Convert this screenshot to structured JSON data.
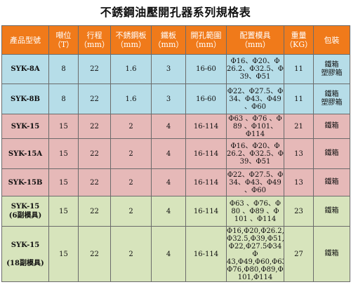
{
  "title": "不銹鋼油壓開孔器系列規格表",
  "headers": {
    "model": "產品型號",
    "tonnage": "噸位\n（T）",
    "stroke": "行程\n（mm）",
    "steel_plate": "不銹鋼板\n（mm）",
    "iron_plate": "鐵板\n（mm）",
    "range": "開孔範圍\n（mm）",
    "molds": "配置模具\n（mm）",
    "weight": "重量\n（KG）",
    "packing": "包裝"
  },
  "colors": {
    "header": "#f07a1a",
    "blue": "#b6dde8",
    "pink": "#e6b9b8",
    "green": "#d7e4bc"
  },
  "rows": [
    {
      "model": "SYK-8A",
      "tonnage": "8",
      "stroke": "22",
      "steel": "1.6",
      "iron": "3",
      "range": "16-60",
      "molds": "Φ16、Φ20、Φ\n26.2、Φ32.5、Φ\n39、Φ51",
      "weight": "11",
      "packing": "鐵箱\n塑膠箱"
    },
    {
      "model": "SYK-8B",
      "tonnage": "8",
      "stroke": "22",
      "steel": "1.6",
      "iron": "3",
      "range": "16-60",
      "molds": "Φ22、Φ27.5、Φ\n34、Φ43、Φ49\n、Φ60",
      "weight": "11",
      "packing": "鐵箱\n塑膠箱"
    },
    {
      "model": "SYK-15",
      "tonnage": "15",
      "stroke": "22",
      "steel": "2",
      "iron": "4",
      "range": "16-114",
      "molds": "Φ63 、Φ76 、Φ\n89 、Φ101、Φ114",
      "weight": "21",
      "packing": "鐵箱"
    },
    {
      "model": "SYK-15A",
      "tonnage": "15",
      "stroke": "22",
      "steel": "2",
      "iron": "4",
      "range": "16-114",
      "molds": "Φ16、Φ20、Φ\n26.2、Φ32.5、Φ\n39、Φ51",
      "weight": "13",
      "packing": "鐵箱"
    },
    {
      "model": "SYK-15B",
      "tonnage": "15",
      "stroke": "22",
      "steel": "2",
      "iron": "4",
      "range": "16-114",
      "molds": "Φ22、Φ27.5、Φ\n34、Φ43、Φ49\n、Φ60",
      "weight": "13",
      "packing": "鐵箱"
    },
    {
      "model": "SYK-15\n(6副模具)",
      "tonnage": "15",
      "stroke": "22",
      "steel": "2",
      "iron": "4",
      "range": "16-114",
      "molds": "Φ63 、Φ76、Φ\n80 、Φ89 、Φ\n101 、Φ114",
      "weight": "23",
      "packing": "鐵箱"
    },
    {
      "model": "SYK-15\n\n(18副模具)",
      "tonnage": "15",
      "stroke": "22",
      "steel": "2",
      "iron": "4",
      "range": "16-114",
      "molds": "Φ16,Φ20,Φ26.2,\nΦ32.5,Φ39,Φ51,\nΦ22,Φ27.5Φ34 Φ\n43,Φ49,Φ60,Φ63,\nΦ76,Φ80,Φ89,Φ\n101,Φ114",
      "weight": "27",
      "packing": "鐵箱"
    }
  ]
}
